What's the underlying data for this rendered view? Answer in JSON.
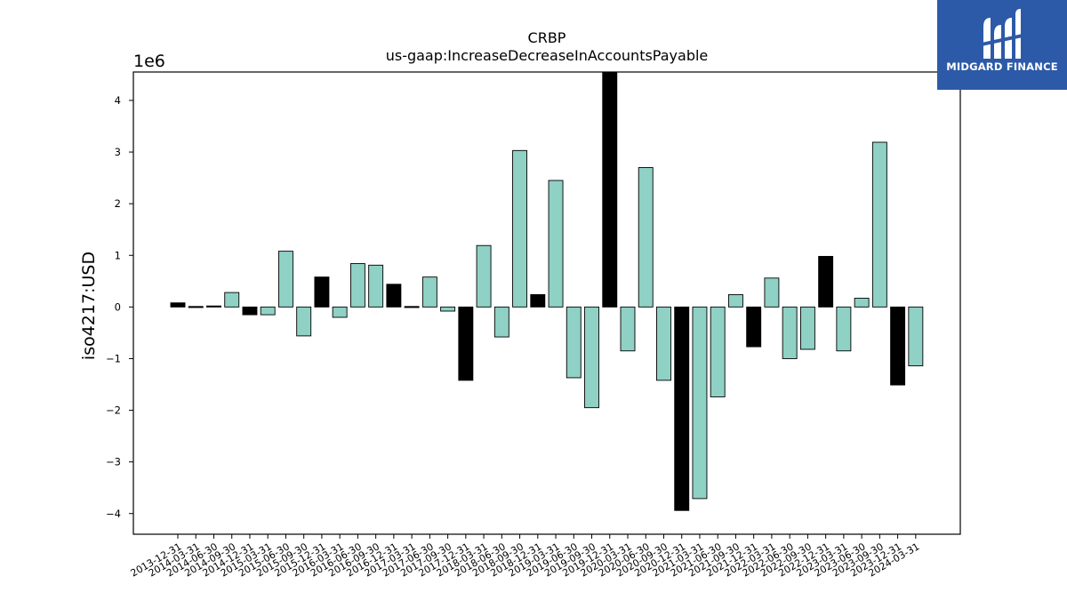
{
  "chart_data": {
    "type": "bar",
    "title": "CRBP",
    "subtitle": "us-gaap:IncreaseDecreaseInAccountsPayable",
    "ylabel": "iso4217:USD",
    "xlabel": "",
    "y_offset_label": "1e6",
    "ylim": [
      -4.4,
      4.55
    ],
    "yticks": [
      -4,
      -3,
      -2,
      -1,
      0,
      1,
      2,
      3,
      4
    ],
    "ytick_labels": [
      "−4",
      "−3",
      "−2",
      "−1",
      "0",
      "1",
      "2",
      "3",
      "4"
    ],
    "grid": false,
    "categories": [
      "2013-12-31",
      "2014-03-31",
      "2014-06-30",
      "2014-09-30",
      "2014-12-31",
      "2015-03-31",
      "2015-06-30",
      "2015-09-30",
      "2015-12-31",
      "2016-03-31",
      "2016-06-30",
      "2016-09-30",
      "2016-12-31",
      "2017-03-31",
      "2017-06-30",
      "2017-09-30",
      "2017-12-31",
      "2018-03-31",
      "2018-06-30",
      "2018-09-30",
      "2018-12-31",
      "2019-03-31",
      "2019-06-30",
      "2019-09-30",
      "2019-12-31",
      "2020-03-31",
      "2020-06-30",
      "2020-09-30",
      "2020-12-31",
      "2021-03-31",
      "2021-06-30",
      "2021-09-30",
      "2021-12-31",
      "2022-03-31",
      "2022-06-30",
      "2022-09-30",
      "2022-12-31",
      "2023-03-31",
      "2023-06-30",
      "2023-09-30",
      "2023-12-31",
      "2024-03-31"
    ],
    "values": [
      80000,
      10000,
      20000,
      280000,
      -150000,
      -150000,
      1080000,
      -560000,
      580000,
      -200000,
      840000,
      810000,
      440000,
      10000,
      580000,
      -80000,
      -1420000,
      1190000,
      -580000,
      3030000,
      240000,
      2450000,
      -1370000,
      -1950000,
      4700000,
      -850000,
      2700000,
      -1420000,
      -3940000,
      -3710000,
      -1740000,
      240000,
      -770000,
      560000,
      -1000000,
      -820000,
      980000,
      -850000,
      170000,
      3190000,
      -1510000,
      -1140000
    ],
    "colors": [
      "#000000",
      "#000000",
      "#000000",
      "#8fd1c4",
      "#000000",
      "#8fd1c4",
      "#8fd1c4",
      "#8fd1c4",
      "#000000",
      "#8fd1c4",
      "#8fd1c4",
      "#8fd1c4",
      "#000000",
      "#000000",
      "#8fd1c4",
      "#8fd1c4",
      "#000000",
      "#8fd1c4",
      "#8fd1c4",
      "#8fd1c4",
      "#000000",
      "#8fd1c4",
      "#8fd1c4",
      "#8fd1c4",
      "#000000",
      "#8fd1c4",
      "#8fd1c4",
      "#8fd1c4",
      "#000000",
      "#8fd1c4",
      "#8fd1c4",
      "#8fd1c4",
      "#000000",
      "#8fd1c4",
      "#8fd1c4",
      "#8fd1c4",
      "#000000",
      "#8fd1c4",
      "#8fd1c4",
      "#8fd1c4",
      "#000000",
      "#8fd1c4"
    ]
  },
  "logo": {
    "text": "MIDGARD FINANCE",
    "background": "#2c5aa8",
    "icon": "midgard-logo-icon"
  }
}
